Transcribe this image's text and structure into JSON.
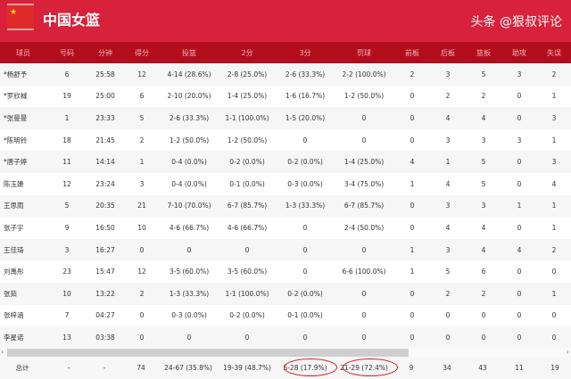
{
  "header": {
    "title": "中国女篮",
    "flag_icon": "china-flag-icon"
  },
  "columns": [
    "球员",
    "号码",
    "分钟",
    "得分",
    "投篮",
    "2分",
    "3分",
    "罚球",
    "前板",
    "后板",
    "篮板",
    "助攻",
    "失误"
  ],
  "rows": [
    [
      "*杨舒予",
      "6",
      "25:58",
      "12",
      "4-14 (28.6%)",
      "2-8 (25.0%)",
      "2-6 (33.3%)",
      "2-2 (100.0%)",
      "2",
      "3",
      "5",
      "3",
      "2"
    ],
    [
      "*罗欣棫",
      "19",
      "25:00",
      "6",
      "2-10 (20.0%)",
      "1-4 (25.0%)",
      "1-6 (16.7%)",
      "1-2 (50.0%)",
      "0",
      "2",
      "2",
      "0",
      "1"
    ],
    [
      "*张曼曼",
      "1",
      "23:33",
      "5",
      "2-6 (33.3%)",
      "1-1 (100.0%)",
      "1-5 (20.0%)",
      "0",
      "0",
      "4",
      "4",
      "0",
      "3"
    ],
    [
      "*陈明铃",
      "18",
      "21:45",
      "2",
      "1-2 (50.0%)",
      "1-2 (50.0%)",
      "0",
      "0",
      "0",
      "3",
      "3",
      "3",
      "1"
    ],
    [
      "*唐子婷",
      "11",
      "14:14",
      "1",
      "0-4 (0.0%)",
      "0-2 (0.0%)",
      "0-2 (0.0%)",
      "1-4 (25.0%)",
      "4",
      "1",
      "5",
      "0",
      "3"
    ],
    [
      "陈玉婕",
      "12",
      "23:24",
      "3",
      "0-4 (0.0%)",
      "0-1 (0.0%)",
      "0-3 (0.0%)",
      "3-4 (75.0%)",
      "1",
      "4",
      "5",
      "0",
      "4"
    ],
    [
      "王思雨",
      "5",
      "20:35",
      "21",
      "7-10 (70.0%)",
      "6-7 (85.7%)",
      "1-3 (33.3%)",
      "6-7 (85.7%)",
      "0",
      "3",
      "3",
      "1",
      "1"
    ],
    [
      "张子宇",
      "9",
      "16:50",
      "10",
      "4-6 (66.7%)",
      "4-6 (66.7%)",
      "0",
      "2-4 (50.0%)",
      "0",
      "4",
      "4",
      "0",
      "1"
    ],
    [
      "王佳琦",
      "3",
      "16:27",
      "0",
      "0",
      "0",
      "0",
      "0",
      "1",
      "3",
      "4",
      "4",
      "2"
    ],
    [
      "刘禹彤",
      "23",
      "15:47",
      "12",
      "3-5 (60.0%)",
      "3-5 (60.0%)",
      "0",
      "6-6 (100.0%)",
      "1",
      "5",
      "6",
      "0",
      "0"
    ],
    [
      "张茹",
      "10",
      "13:22",
      "2",
      "1-3 (33.3%)",
      "1-1 (100.0%)",
      "0-2 (0.0%)",
      "0",
      "0",
      "2",
      "2",
      "0",
      "1"
    ],
    [
      "张梓涵",
      "7",
      "04:27",
      "0",
      "0-3 (0.0%)",
      "0-2 (0.0%)",
      "0-1 (0.0%)",
      "0",
      "0",
      "0",
      "0",
      "0",
      "0"
    ],
    [
      "李星诺",
      "13",
      "03:38",
      "0",
      "0",
      "0",
      "0",
      "0",
      "0",
      "0",
      "0",
      "0",
      "0"
    ]
  ],
  "total": [
    "总计",
    "-",
    "-",
    "74",
    "24-67 (35.8%)",
    "19-39 (48.7%)",
    "5-28 (17.9%)",
    "21-29 (72.4%)",
    "9",
    "34",
    "43",
    "11",
    "19"
  ],
  "watermark": "头条 @狠叔评论",
  "colors": {
    "banner": "#d8213a",
    "header_row": "#b30e1e",
    "highlight": "#d8141c"
  }
}
